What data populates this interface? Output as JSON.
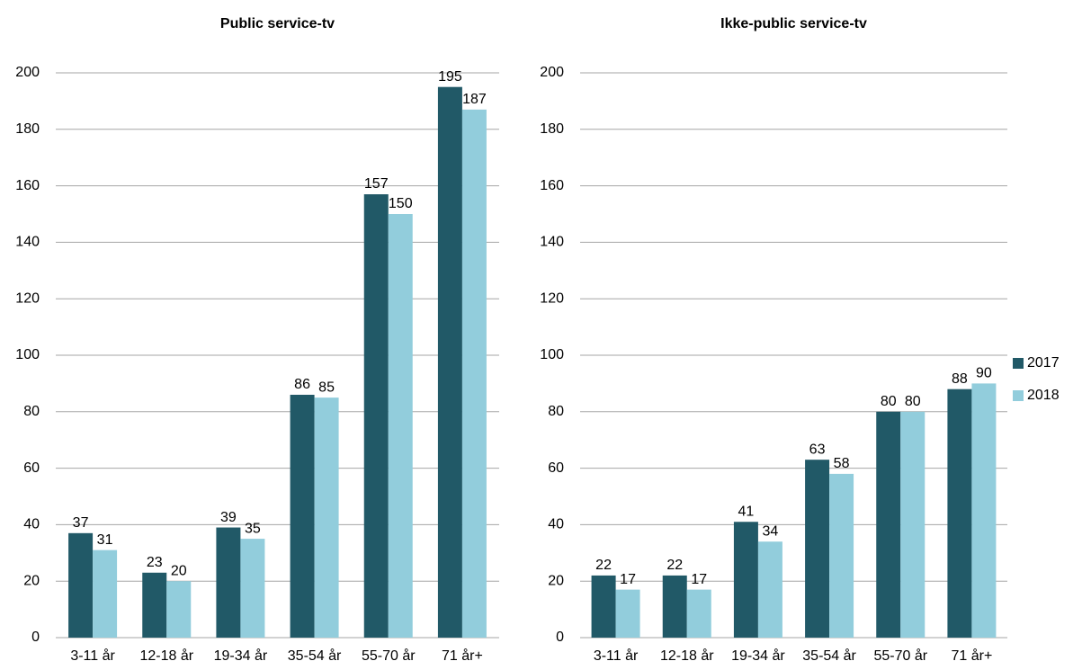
{
  "chart_data": [
    {
      "type": "bar",
      "title": "Public service-tv",
      "categories": [
        "3-11 år",
        "12-18 år",
        "19-34 år",
        "35-54 år",
        "55-70 år",
        "71 år+"
      ],
      "series": [
        {
          "name": "2017",
          "color": "#215967",
          "values": [
            37,
            23,
            39,
            86,
            157,
            195
          ]
        },
        {
          "name": "2018",
          "color": "#92cddc",
          "values": [
            31,
            20,
            35,
            85,
            150,
            187
          ]
        }
      ],
      "ylim": [
        0,
        200
      ],
      "yticks": [
        0,
        20,
        40,
        60,
        80,
        100,
        120,
        140,
        160,
        180,
        200
      ],
      "grid": true,
      "legend": "right"
    },
    {
      "type": "bar",
      "title": "Ikke-public service-tv",
      "categories": [
        "3-11 år",
        "12-18 år",
        "19-34 år",
        "35-54 år",
        "55-70 år",
        "71 år+"
      ],
      "series": [
        {
          "color": "#215967",
          "values": [
            22,
            22,
            41,
            63,
            80,
            88
          ]
        },
        {
          "color": "#92cddc",
          "values": [
            17,
            17,
            34,
            58,
            80,
            90
          ]
        }
      ],
      "ylim": [
        0,
        200
      ],
      "yticks": [
        0,
        20,
        40,
        60,
        80,
        100,
        120,
        140,
        160,
        180,
        200
      ],
      "grid": true
    }
  ]
}
